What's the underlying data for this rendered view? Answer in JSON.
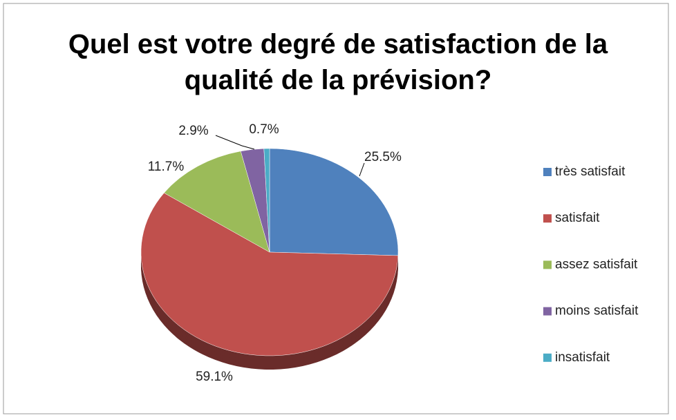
{
  "chart_data": {
    "type": "pie",
    "title": "Quel est votre degré de satisfaction de la qualité de la prévision?",
    "categories": [
      "très satisfait",
      "satisfait",
      "assez satisfait",
      "moins satisfait",
      "insatisfait"
    ],
    "values": [
      25.5,
      59.1,
      11.7,
      2.9,
      0.7
    ],
    "value_labels": [
      "25.5%",
      "59.1%",
      "11.7%",
      "2.9%",
      "0.7%"
    ],
    "colors": [
      "#4f81bd",
      "#c0504d",
      "#9bbb59",
      "#8064a2",
      "#4bacc6"
    ],
    "legend": "right"
  }
}
